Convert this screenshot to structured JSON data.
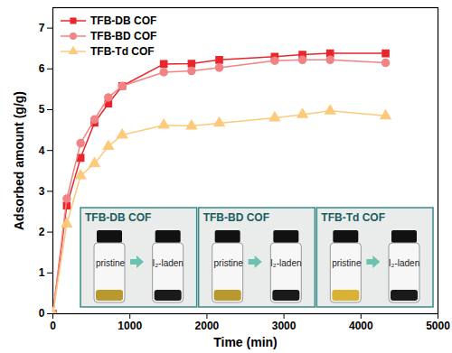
{
  "chart_data": {
    "type": "line",
    "x_label": "Time (min)",
    "y_label": "Adsorbed amount (g/g)",
    "x": [
      0,
      180,
      360,
      540,
      720,
      900,
      1440,
      1800,
      2160,
      2880,
      3240,
      3600,
      4320
    ],
    "series": [
      {
        "name": "TFB-DB COF",
        "color": "#e8262b",
        "marker": "square",
        "values": [
          0,
          2.65,
          3.82,
          4.68,
          5.15,
          5.58,
          6.12,
          6.13,
          6.22,
          6.3,
          6.35,
          6.38,
          6.38
        ]
      },
      {
        "name": "TFB-BD COF",
        "color": "#f08383",
        "marker": "circle",
        "values": [
          0,
          2.82,
          4.18,
          4.76,
          5.3,
          5.58,
          5.92,
          5.95,
          6.03,
          6.2,
          6.22,
          6.22,
          6.15
        ]
      },
      {
        "name": "TFB-Td COF",
        "color": "#fdc97a",
        "marker": "triangle",
        "values": [
          0,
          2.2,
          3.38,
          3.68,
          4.1,
          4.38,
          4.62,
          4.6,
          4.67,
          4.8,
          4.88,
          4.97,
          4.85
        ]
      }
    ],
    "xlim": [
      0,
      5000
    ],
    "xticks": [
      0,
      1000,
      2000,
      3000,
      4000,
      5000
    ],
    "ylim": [
      0,
      7.5
    ],
    "yticks": [
      0,
      1,
      2,
      3,
      4,
      5,
      6,
      7
    ],
    "grid": false,
    "legend": "upper left",
    "annotations": [
      {
        "title": "TFB-DB COF",
        "before": "pristine",
        "after": "I₂-laden"
      },
      {
        "title": "TFB-BD COF",
        "before": "pristine",
        "after": "I₂-laden"
      },
      {
        "title": "TFB-Td COF",
        "before": "pristine",
        "after": "I₂-laden"
      }
    ]
  }
}
